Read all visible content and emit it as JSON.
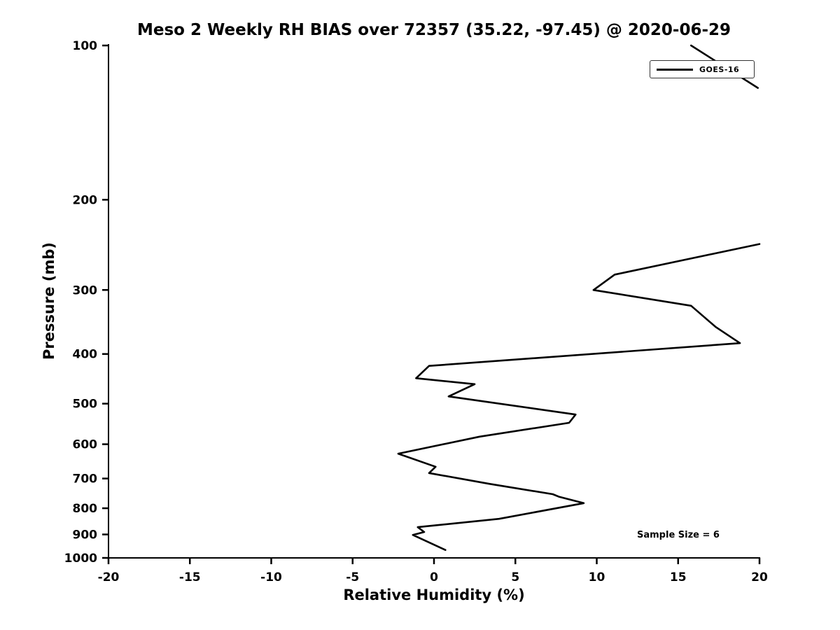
{
  "chart_data": {
    "type": "line",
    "title": "Meso 2 Weekly RH BIAS over 72357 (35.22, -97.45) @ 2020-06-29",
    "xlabel": "Relative Humidity (%)",
    "ylabel": "Pressure (mb)",
    "xlim": [
      -20,
      20
    ],
    "ylim": [
      1000,
      100
    ],
    "y_scale": "log",
    "grid": false,
    "x_ticks": [
      -20,
      -15,
      -10,
      -5,
      0,
      5,
      10,
      15,
      20
    ],
    "y_ticks": [
      100,
      200,
      300,
      400,
      500,
      600,
      700,
      800,
      900,
      1000
    ],
    "legend": {
      "position": "upper right",
      "entries": [
        {
          "label": "GOES-16",
          "color": "#000000"
        }
      ]
    },
    "annotation": "Sample Size = 6",
    "series": [
      {
        "name": "GOES-16",
        "color": "#000000",
        "segments": [
          [
            [
              15.8,
              100
            ],
            [
              19.9,
              121
            ]
          ],
          [
            [
              20.0,
              244
            ],
            [
              11.1,
              280
            ],
            [
              9.8,
              300
            ],
            [
              15.8,
              322
            ],
            [
              17.3,
              354
            ],
            [
              18.8,
              381
            ],
            [
              -0.3,
              422
            ],
            [
              -1.1,
              446
            ],
            [
              2.5,
              458
            ],
            [
              0.9,
              484
            ],
            [
              8.7,
              525
            ],
            [
              8.3,
              545
            ],
            [
              2.8,
              580
            ],
            [
              -2.2,
              626
            ],
            [
              0.1,
              664
            ],
            [
              -0.3,
              683
            ],
            [
              3.4,
              717
            ],
            [
              7.3,
              751
            ],
            [
              7.7,
              760
            ],
            [
              9.2,
              782
            ],
            [
              4.0,
              839
            ],
            [
              -1.0,
              871
            ],
            [
              -0.6,
              890
            ],
            [
              -1.3,
              902
            ],
            [
              0.7,
              965
            ]
          ]
        ]
      }
    ]
  }
}
